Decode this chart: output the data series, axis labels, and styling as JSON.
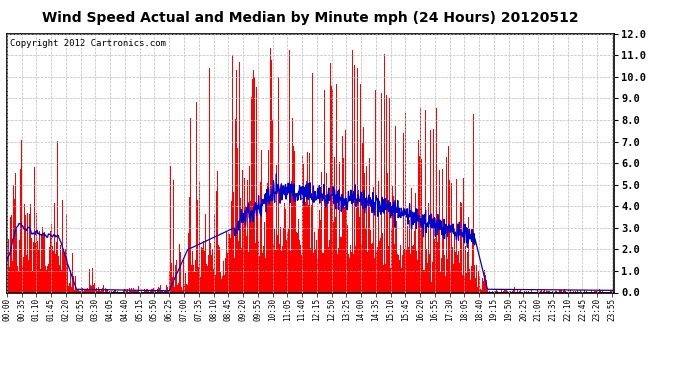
{
  "title": "Wind Speed Actual and Median by Minute mph (24 Hours) 20120512",
  "copyright": "Copyright 2012 Cartronics.com",
  "ylim": [
    0.0,
    12.0
  ],
  "yticks": [
    0.0,
    1.0,
    2.0,
    3.0,
    4.0,
    5.0,
    6.0,
    7.0,
    8.0,
    9.0,
    10.0,
    11.0,
    12.0
  ],
  "bar_color": "#ff0000",
  "line_color": "#0000cd",
  "bg_color": "#ffffff",
  "grid_color": "#bbbbbb",
  "title_fontsize": 10,
  "copyright_fontsize": 6.5,
  "tick_label_fontsize": 5.5,
  "ytick_fontsize": 7.5,
  "total_minutes": 1440,
  "tick_step": 35,
  "seed": 12345
}
